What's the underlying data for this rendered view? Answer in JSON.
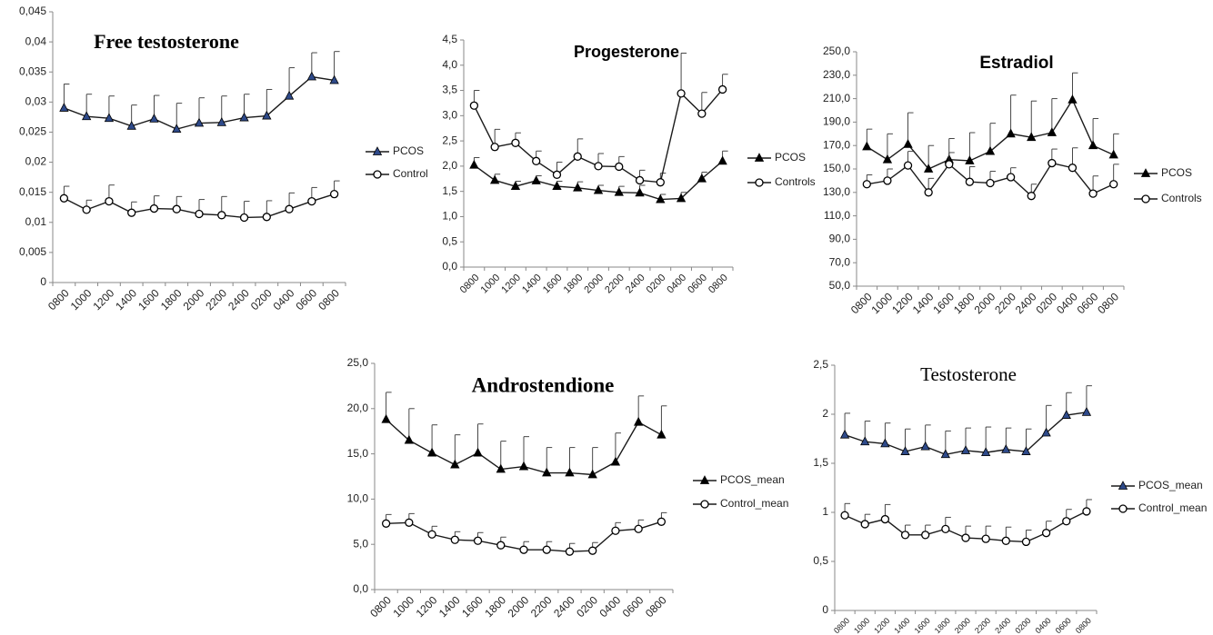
{
  "chart_data": [
    {
      "type": "line",
      "title": "Free testosterone",
      "categories": [
        "0800",
        "1000",
        "1200",
        "1400",
        "1600",
        "1800",
        "2000",
        "2200",
        "2400",
        "0200",
        "0400",
        "0600",
        "0800"
      ],
      "ylim": [
        0,
        0.045
      ],
      "yticks": [
        0,
        {
          "value": 0.005,
          "label": "0,005"
        },
        {
          "value": 0.01,
          "label": "0,01"
        },
        {
          "value": 0.015,
          "label": "0,015"
        },
        {
          "value": 0.02,
          "label": "0,02"
        },
        {
          "value": 0.025,
          "label": "0,025"
        },
        {
          "value": 0.03,
          "label": "0,03"
        },
        {
          "value": 0.035,
          "label": "0,035"
        },
        {
          "value": 0.04,
          "label": "0,04"
        },
        {
          "value": 0.045,
          "label": "0,045"
        }
      ],
      "series": [
        {
          "name": "PCOS",
          "color": "#1a1a1a",
          "marker": "triangle",
          "marker_fill": "#2e4a8a",
          "values": [
            0.029,
            0.0276,
            0.0273,
            0.026,
            0.0272,
            0.0255,
            0.0265,
            0.0266,
            0.0274,
            0.0277,
            0.031,
            0.0342,
            0.0336
          ],
          "errors": [
            0.004,
            0.0037,
            0.0037,
            0.0035,
            0.0039,
            0.0043,
            0.0042,
            0.0044,
            0.0039,
            0.0044,
            0.0047,
            0.004,
            0.0048
          ]
        },
        {
          "name": "Control",
          "color": "#1a1a1a",
          "marker": "circle",
          "marker_fill": "#ffffff",
          "values": [
            0.014,
            0.0121,
            0.0135,
            0.0116,
            0.0123,
            0.0122,
            0.0114,
            0.0112,
            0.0108,
            0.0109,
            0.0122,
            0.0135,
            0.0147
          ],
          "errors": [
            0.002,
            0.0016,
            0.0027,
            0.0018,
            0.0021,
            0.0021,
            0.0024,
            0.0031,
            0.0027,
            0.0027,
            0.0027,
            0.0023,
            0.0022
          ]
        }
      ]
    },
    {
      "type": "line",
      "title": "Progesterone",
      "categories": [
        "0800",
        "1000",
        "1200",
        "1400",
        "1600",
        "1800",
        "2000",
        "2200",
        "2400",
        "0200",
        "0400",
        "0600",
        "0800"
      ],
      "ylim": [
        0,
        4.5
      ],
      "yticks": [
        {
          "value": 0,
          "label": "0,0"
        },
        {
          "value": 0.5,
          "label": "0,5"
        },
        {
          "value": 1,
          "label": "1,0"
        },
        {
          "value": 1.5,
          "label": "1,5"
        },
        {
          "value": 2,
          "label": "2,0"
        },
        {
          "value": 2.5,
          "label": "2,5"
        },
        {
          "value": 3,
          "label": "3,0"
        },
        {
          "value": 3.5,
          "label": "3,5"
        },
        {
          "value": 4,
          "label": "4,0"
        },
        {
          "value": 4.5,
          "label": "4,5"
        }
      ],
      "series": [
        {
          "name": "PCOS",
          "color": "#1a1a1a",
          "marker": "triangle",
          "marker_fill": "#000000",
          "values": [
            2.02,
            1.72,
            1.6,
            1.71,
            1.6,
            1.57,
            1.52,
            1.48,
            1.47,
            1.34,
            1.36,
            1.75,
            2.1
          ],
          "errors": [
            0.15,
            0.12,
            0.1,
            0.1,
            0.1,
            0.12,
            0.1,
            0.12,
            0.15,
            0.1,
            0.12,
            0.13,
            0.2
          ]
        },
        {
          "name": "Controls",
          "color": "#1a1a1a",
          "marker": "circle",
          "marker_fill": "#ffffff",
          "values": [
            3.2,
            2.38,
            2.46,
            2.1,
            1.83,
            2.19,
            2.0,
            1.99,
            1.72,
            1.68,
            3.44,
            3.04,
            3.52
          ],
          "errors": [
            0.3,
            0.35,
            0.2,
            0.2,
            0.25,
            0.35,
            0.25,
            0.2,
            0.2,
            0.18,
            0.8,
            0.42,
            0.3
          ]
        }
      ]
    },
    {
      "type": "line",
      "title": "Estradiol",
      "categories": [
        "0800",
        "1000",
        "1200",
        "1400",
        "1600",
        "1800",
        "2000",
        "2200",
        "2400",
        "0200",
        "0400",
        "0600",
        "0800"
      ],
      "ylim": [
        50,
        250
      ],
      "yticks": [
        {
          "value": 50,
          "label": "50,0"
        },
        {
          "value": 70,
          "label": "70,0"
        },
        {
          "value": 90,
          "label": "90,0"
        },
        {
          "value": 110,
          "label": "110,0"
        },
        {
          "value": 130,
          "label": "130,0"
        },
        {
          "value": 150,
          "label": "150,0"
        },
        {
          "value": 170,
          "label": "170,0"
        },
        {
          "value": 190,
          "label": "190,0"
        },
        {
          "value": 210,
          "label": "210,0"
        },
        {
          "value": 230,
          "label": "230,0"
        },
        {
          "value": 250,
          "label": "250,0"
        }
      ],
      "series": [
        {
          "name": "PCOS",
          "color": "#1a1a1a",
          "marker": "triangle",
          "marker_fill": "#000000",
          "values": [
            169,
            158,
            171,
            150,
            158,
            157,
            165,
            180,
            177,
            181,
            209,
            170,
            162
          ],
          "errors": [
            15,
            22,
            27,
            20,
            18,
            24,
            24,
            33,
            31,
            29,
            23,
            23,
            18
          ]
        },
        {
          "name": "Controls",
          "color": "#1a1a1a",
          "marker": "circle",
          "marker_fill": "#ffffff",
          "values": [
            137,
            140,
            153,
            130,
            154,
            139,
            138,
            143,
            127,
            155,
            151,
            129,
            137
          ],
          "errors": [
            8,
            10,
            12,
            12,
            10,
            13,
            10,
            8,
            10,
            12,
            17,
            15,
            17
          ]
        }
      ]
    },
    {
      "type": "line",
      "title": "Androstendione",
      "categories": [
        "0800",
        "1000",
        "1200",
        "1400",
        "1600",
        "1800",
        "2000",
        "2200",
        "2400",
        "0200",
        "0400",
        "0600",
        "0800"
      ],
      "ylim": [
        0,
        25
      ],
      "yticks": [
        {
          "value": 0,
          "label": "0,0"
        },
        {
          "value": 5,
          "label": "5,0"
        },
        {
          "value": 10,
          "label": "10,0"
        },
        {
          "value": 15,
          "label": "15,0"
        },
        {
          "value": 20,
          "label": "20,0"
        },
        {
          "value": 25,
          "label": "25,0"
        }
      ],
      "series": [
        {
          "name": "PCOS_mean",
          "color": "#1a1a1a",
          "marker": "triangle",
          "marker_fill": "#000000",
          "values": [
            18.8,
            16.5,
            15.1,
            13.8,
            15.1,
            13.3,
            13.6,
            12.9,
            12.9,
            12.7,
            14.1,
            18.5,
            17.1
          ],
          "errors": [
            3,
            3.5,
            3.1,
            3.3,
            3.2,
            3.1,
            3.3,
            2.8,
            2.8,
            3.0,
            3.2,
            2.9,
            3.2
          ]
        },
        {
          "name": "Control_mean",
          "color": "#1a1a1a",
          "marker": "circle",
          "marker_fill": "#ffffff",
          "values": [
            7.3,
            7.4,
            6.1,
            5.5,
            5.4,
            4.9,
            4.4,
            4.4,
            4.2,
            4.3,
            6.5,
            6.7,
            7.5
          ],
          "errors": [
            1,
            1,
            0.9,
            0.9,
            0.9,
            0.9,
            0.9,
            0.9,
            0.9,
            0.9,
            0.9,
            1,
            1
          ]
        }
      ]
    },
    {
      "type": "line",
      "title": "Testosterone",
      "categories": [
        "0800",
        "1000",
        "1200",
        "1400",
        "1600",
        "1800",
        "2000",
        "2200",
        "2400",
        "0200",
        "0400",
        "0600",
        "0800"
      ],
      "ylim": [
        0,
        2.5
      ],
      "yticks": [
        0,
        {
          "value": 0.5,
          "label": "0,5"
        },
        1,
        {
          "value": 1.5,
          "label": "1,5"
        },
        2,
        {
          "value": 2.5,
          "label": "2,5"
        }
      ],
      "series": [
        {
          "name": "PCOS_mean",
          "color": "#1a1a1a",
          "marker": "triangle",
          "marker_fill": "#2e4a8a",
          "values": [
            1.79,
            1.72,
            1.7,
            1.62,
            1.67,
            1.59,
            1.63,
            1.61,
            1.64,
            1.62,
            1.81,
            1.99,
            2.02
          ],
          "errors": [
            0.22,
            0.21,
            0.21,
            0.23,
            0.22,
            0.24,
            0.23,
            0.26,
            0.22,
            0.23,
            0.28,
            0.23,
            0.27
          ]
        },
        {
          "name": "Control_mean",
          "color": "#1a1a1a",
          "marker": "circle",
          "marker_fill": "#ffffff",
          "values": [
            0.97,
            0.88,
            0.93,
            0.77,
            0.77,
            0.83,
            0.74,
            0.73,
            0.71,
            0.7,
            0.79,
            0.91,
            1.01
          ],
          "errors": [
            0.12,
            0.1,
            0.15,
            0.1,
            0.1,
            0.12,
            0.12,
            0.13,
            0.14,
            0.12,
            0.12,
            0.12,
            0.12
          ]
        }
      ]
    }
  ]
}
